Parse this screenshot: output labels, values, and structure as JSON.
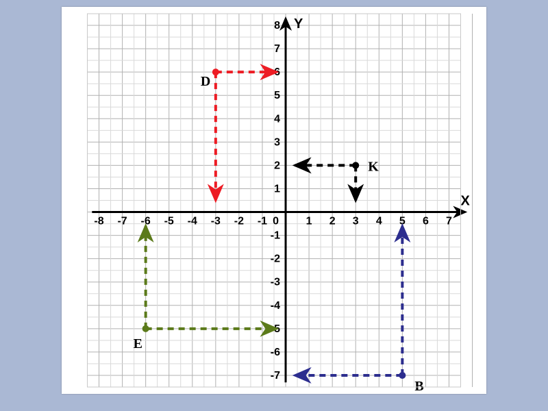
{
  "chart": {
    "type": "coordinate-grid",
    "background_color": "#ffffff",
    "page_background_color": "#aab8d4",
    "grid_minor_color": "#d9d9d9",
    "grid_major_color": "#b0b0b0",
    "axis_color": "#000000",
    "axis_width": 3,
    "xlim": [
      -8,
      7
    ],
    "ylim": [
      -7,
      8
    ],
    "xtick_step": 1,
    "ytick_step": 1,
    "tick_fontsize": 16,
    "axislabel_fontsize": 20,
    "x_axis_label": "X",
    "y_axis_label": "Y",
    "points": {
      "D": {
        "x": -3,
        "y": 6,
        "label": "D",
        "color": "#ed1c24"
      },
      "K": {
        "x": 3,
        "y": 2,
        "label": "K",
        "color": "#000000"
      },
      "E": {
        "x": -6,
        "y": -5,
        "label": "E",
        "color": "#5b7a1a"
      },
      "B": {
        "x": 5,
        "y": -7,
        "label": "B",
        "color": "#2c2d8e"
      }
    },
    "paths": {
      "D": {
        "color": "#ed1c24",
        "dash": "9 7",
        "width": 4,
        "segments": [
          {
            "from": [
              -3,
              6
            ],
            "to": [
              -0.4,
              6
            ],
            "arrow": "end"
          },
          {
            "from": [
              -3,
              6
            ],
            "to": [
              -3,
              0.5
            ],
            "arrow": "end"
          }
        ]
      },
      "K": {
        "color": "#000000",
        "dash": "9 7",
        "width": 4,
        "segments": [
          {
            "from": [
              3,
              2
            ],
            "to": [
              0.4,
              2
            ],
            "arrow": "end"
          },
          {
            "from": [
              3,
              2
            ],
            "to": [
              3,
              0.5
            ],
            "arrow": "end"
          }
        ]
      },
      "E": {
        "color": "#5b7a1a",
        "dash": "9 7",
        "width": 4,
        "segments": [
          {
            "from": [
              -6,
              -5
            ],
            "to": [
              -0.4,
              -5
            ],
            "arrow": "end"
          },
          {
            "from": [
              -6,
              -5
            ],
            "to": [
              -6,
              -0.6
            ],
            "arrow": "end"
          }
        ]
      },
      "B": {
        "color": "#2c2d8e",
        "dash": "9 7",
        "width": 4,
        "segments": [
          {
            "from": [
              5,
              -7
            ],
            "to": [
              0.4,
              -7
            ],
            "arrow": "end"
          },
          {
            "from": [
              5,
              -7
            ],
            "to": [
              5,
              -0.6
            ],
            "arrow": "end"
          }
        ]
      }
    },
    "point_label_positions": {
      "D": {
        "dx": -22,
        "dy": 20
      },
      "K": {
        "dx": 18,
        "dy": 8
      },
      "E": {
        "dx": -18,
        "dy": 28
      },
      "B": {
        "dx": 18,
        "dy": 22
      }
    },
    "point_label_fontsize": 20
  }
}
